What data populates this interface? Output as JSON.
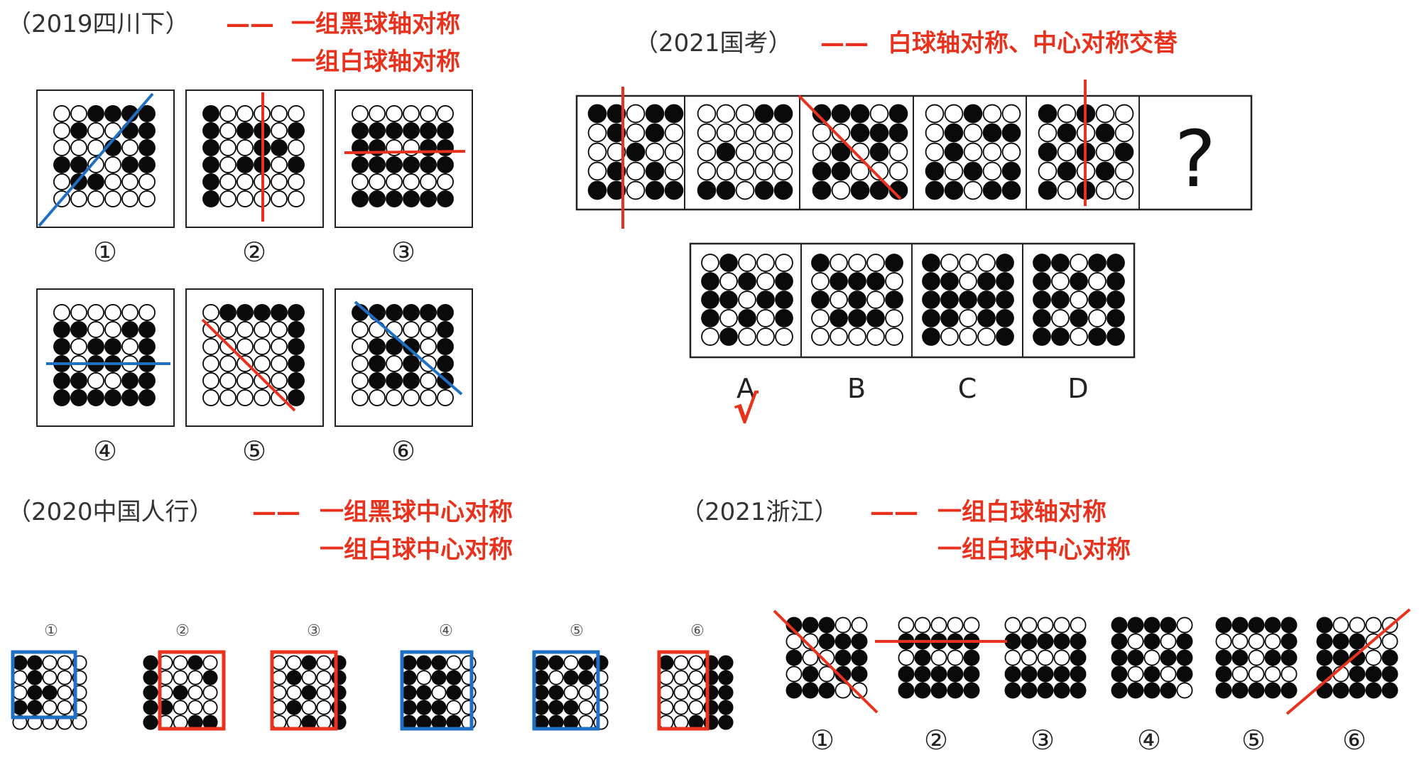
{
  "sections": {
    "sichuan": {
      "source": "（2019四川下）",
      "dash": "——",
      "rule_line1": "一组黑球轴对称",
      "rule_line2": "一组白球轴对称",
      "labels": [
        "①",
        "②",
        "③",
        "④",
        "⑤",
        "⑥"
      ]
    },
    "guokao": {
      "source": "（2021国考）",
      "dash": "——",
      "rule": "白球轴对称、中心对称交替",
      "question_mark": "?",
      "option_labels": [
        "A",
        "B",
        "C",
        "D"
      ],
      "answer_check": "√"
    },
    "renhang": {
      "source": "（2020中国人行）",
      "dash": "——",
      "rule_line1": "一组黑球中心对称",
      "rule_line2": "一组白球中心对称",
      "labels": [
        "①",
        "②",
        "③",
        "④",
        "⑤",
        "⑥"
      ]
    },
    "zhejiang": {
      "source": "（2021浙江）",
      "dash": "——",
      "rule_line1": "一组白球轴对称",
      "rule_line2": "一组白球中心对称",
      "labels": [
        "①",
        "②",
        "③",
        "④",
        "⑤",
        "⑥"
      ]
    }
  },
  "colors": {
    "red": "#e8321e",
    "blue": "#1f6fc4",
    "black": "#0a0a0a"
  }
}
